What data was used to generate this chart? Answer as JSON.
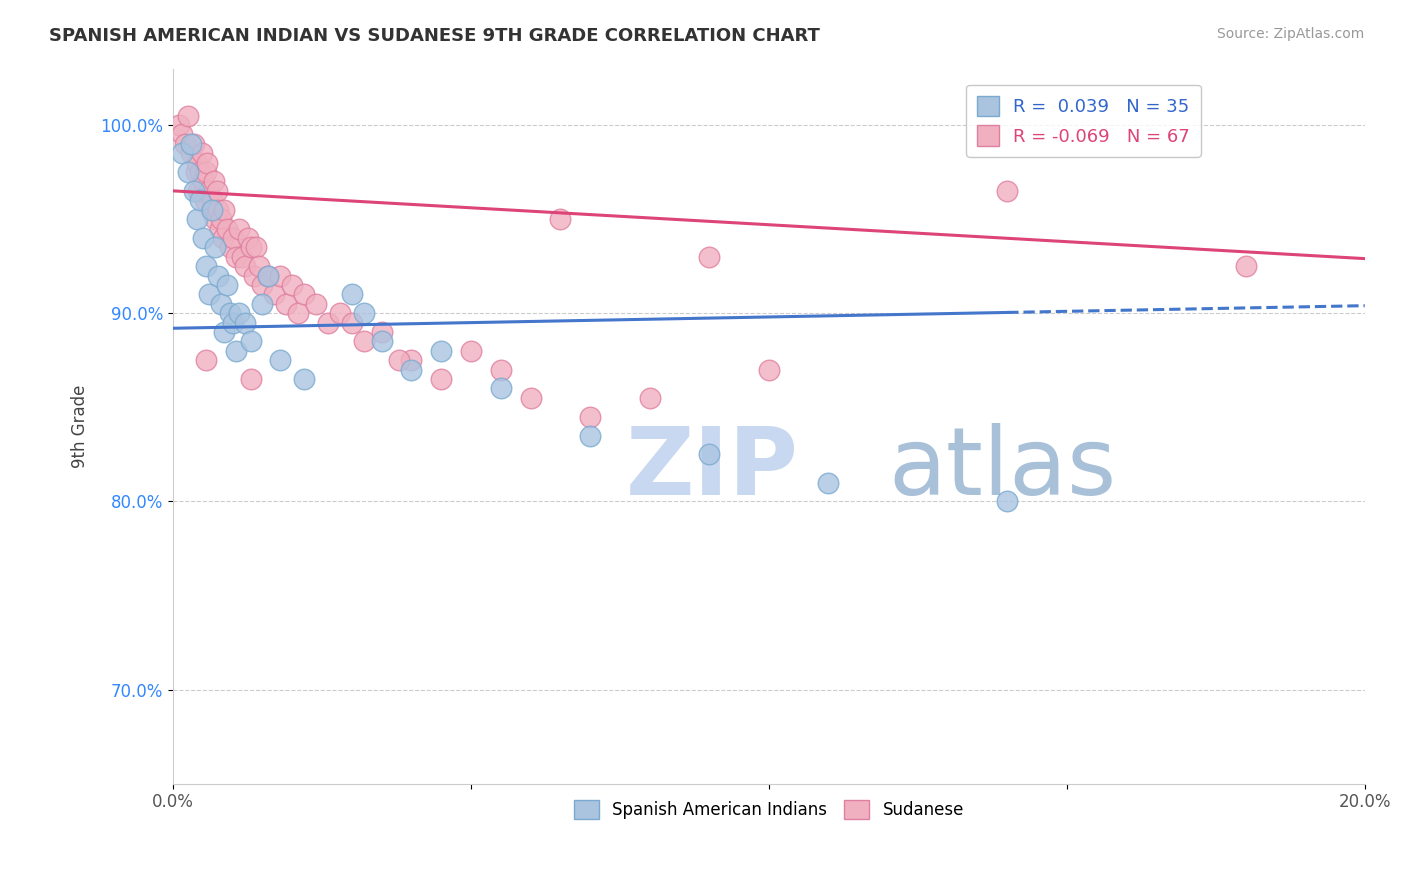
{
  "title": "SPANISH AMERICAN INDIAN VS SUDANESE 9TH GRADE CORRELATION CHART",
  "source_text": "Source: ZipAtlas.com",
  "ylabel": "9th Grade",
  "xlim": [
    0.0,
    20.0
  ],
  "ylim": [
    65.0,
    103.0
  ],
  "x_ticks": [
    0.0,
    5.0,
    10.0,
    15.0,
    20.0
  ],
  "x_tick_labels": [
    "0.0%",
    "",
    "",
    "",
    "20.0%"
  ],
  "y_ticks": [
    70.0,
    80.0,
    90.0,
    100.0
  ],
  "y_tick_labels": [
    "70.0%",
    "80.0%",
    "90.0%",
    "100.0%"
  ],
  "blue_R": 0.039,
  "blue_N": 35,
  "pink_R": -0.069,
  "pink_N": 67,
  "blue_color": "#aac4e0",
  "blue_edge_color": "#7aaad0",
  "pink_color": "#f0b0c0",
  "pink_edge_color": "#e080a0",
  "blue_line_color": "#4477cc",
  "pink_line_color": "#dd4477",
  "watermark_zip_color": "#c8d8f0",
  "watermark_atlas_color": "#a0b8d0",
  "legend_R_blue_color": "#3366cc",
  "legend_R_pink_color": "#dd4477",
  "blue_scatter_x": [
    0.15,
    0.25,
    0.3,
    0.35,
    0.4,
    0.45,
    0.5,
    0.55,
    0.6,
    0.65,
    0.7,
    0.75,
    0.8,
    0.85,
    0.9,
    0.95,
    1.0,
    1.05,
    1.1,
    1.2,
    1.3,
    1.5,
    1.8,
    2.2,
    3.0,
    3.2,
    3.5,
    4.0,
    4.5,
    5.5,
    7.0,
    9.0,
    11.0,
    14.0,
    1.6
  ],
  "blue_scatter_y": [
    98.5,
    97.5,
    99.0,
    96.5,
    95.0,
    96.0,
    94.0,
    92.5,
    91.0,
    95.5,
    93.5,
    92.0,
    90.5,
    89.0,
    91.5,
    90.0,
    89.5,
    88.0,
    90.0,
    89.5,
    88.5,
    90.5,
    87.5,
    86.5,
    91.0,
    90.0,
    88.5,
    87.0,
    88.0,
    86.0,
    83.5,
    82.5,
    81.0,
    80.0,
    92.0
  ],
  "pink_scatter_x": [
    0.1,
    0.15,
    0.2,
    0.25,
    0.3,
    0.35,
    0.38,
    0.4,
    0.42,
    0.45,
    0.48,
    0.5,
    0.53,
    0.55,
    0.57,
    0.6,
    0.63,
    0.65,
    0.68,
    0.7,
    0.73,
    0.75,
    0.78,
    0.8,
    0.83,
    0.85,
    0.9,
    0.95,
    1.0,
    1.05,
    1.1,
    1.15,
    1.2,
    1.25,
    1.3,
    1.35,
    1.4,
    1.45,
    1.5,
    1.6,
    1.7,
    1.8,
    1.9,
    2.0,
    2.1,
    2.2,
    2.4,
    2.6,
    2.8,
    3.0,
    3.2,
    3.5,
    4.0,
    4.5,
    5.0,
    5.5,
    6.0,
    7.0,
    8.0,
    9.0,
    10.0,
    14.0,
    0.55,
    1.3,
    3.8,
    6.5,
    18.0
  ],
  "pink_scatter_y": [
    100.0,
    99.5,
    99.0,
    100.5,
    98.5,
    99.0,
    97.5,
    98.0,
    96.5,
    97.5,
    98.5,
    97.0,
    96.0,
    97.5,
    98.0,
    96.5,
    95.5,
    96.0,
    97.0,
    95.0,
    96.5,
    95.5,
    94.5,
    95.0,
    94.0,
    95.5,
    94.5,
    93.5,
    94.0,
    93.0,
    94.5,
    93.0,
    92.5,
    94.0,
    93.5,
    92.0,
    93.5,
    92.5,
    91.5,
    92.0,
    91.0,
    92.0,
    90.5,
    91.5,
    90.0,
    91.0,
    90.5,
    89.5,
    90.0,
    89.5,
    88.5,
    89.0,
    87.5,
    86.5,
    88.0,
    87.0,
    85.5,
    84.5,
    85.5,
    93.0,
    87.0,
    96.5,
    87.5,
    86.5,
    87.5,
    95.0,
    92.5
  ],
  "blue_solid_x_end": 14.0,
  "blue_line_intercept": 89.2,
  "blue_line_slope": 0.06,
  "pink_line_intercept": 96.5,
  "pink_line_slope": -0.18
}
